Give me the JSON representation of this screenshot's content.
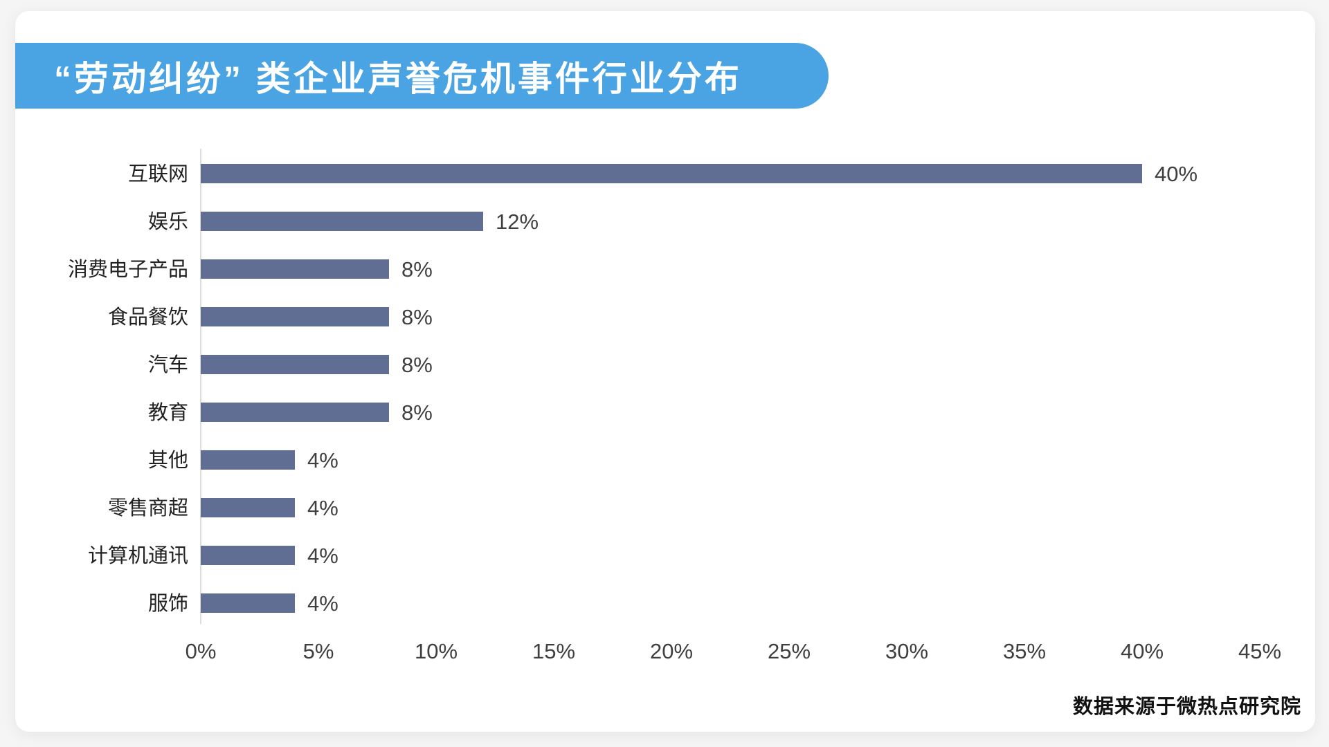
{
  "header": {
    "title": "“劳动纠纷” 类企业声誉危机事件行业分布",
    "banner_color": "#4AA3E2",
    "title_text_color": "#ffffff"
  },
  "chart_data": {
    "type": "bar",
    "orientation": "horizontal",
    "title": "“劳动纠纷” 类企业声誉危机事件行业分布",
    "categories": [
      "互联网",
      "娱乐",
      "消费电子产品",
      "食品餐饮",
      "汽车",
      "教育",
      "其他",
      "零售商超",
      "计算机通讯",
      "服饰"
    ],
    "values": [
      40,
      12,
      8,
      8,
      8,
      8,
      4,
      4,
      4,
      4
    ],
    "value_labels": [
      "40%",
      "12%",
      "8%",
      "8%",
      "8%",
      "8%",
      "4%",
      "4%",
      "4%",
      "4%"
    ],
    "x_tick_values": [
      0,
      5,
      10,
      15,
      20,
      25,
      30,
      35,
      40,
      45
    ],
    "x_tick_labels": [
      "0%",
      "5%",
      "10%",
      "15%",
      "20%",
      "25%",
      "30%",
      "35%",
      "40%",
      "45%"
    ],
    "xlim": [
      0,
      45
    ],
    "xlabel": "",
    "ylabel": "",
    "grid": "single-vertical-axis-line-only",
    "legend": "none",
    "bar_color": "#616E94",
    "axis_line_color": "#dcdcdc"
  },
  "footer": {
    "source": "数据来源于微热点研究院"
  }
}
